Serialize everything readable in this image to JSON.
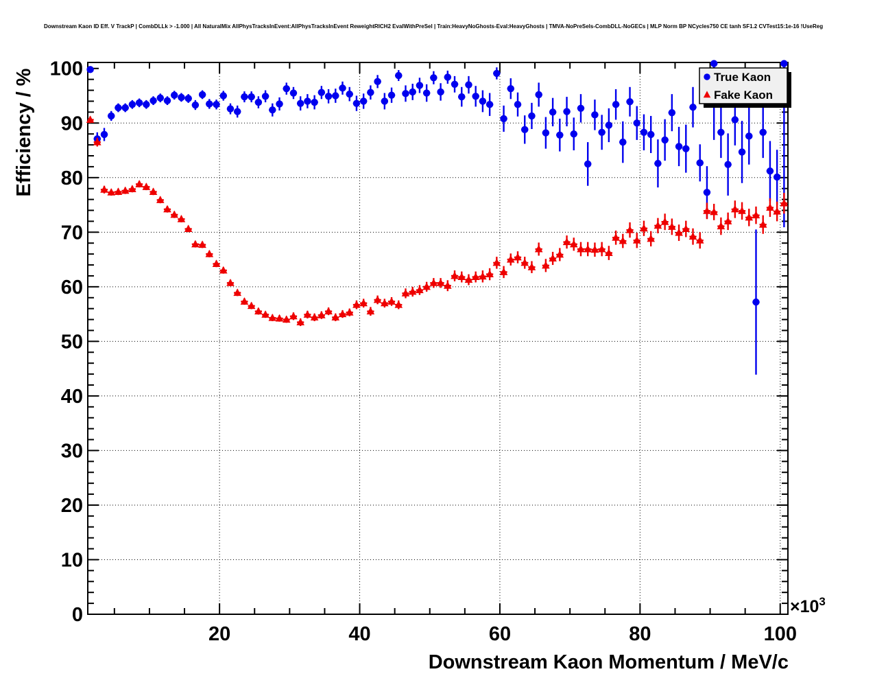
{
  "chart_data": {
    "type": "scatter",
    "title": "Downstream Kaon ID Eff. V TrackP | CombDLLk > -1.000 | All NaturalMix AllPhysTracksInEvent:AllPhysTracksInEvent ReweightRICH2 EvalWithPreSel | Train:HeavyNoGhosts-Eval:HeavyGhosts | TMVA-NoPreSels-CombDLL-NoGECs | MLP Norm BP NCycles750 CE tanh SF1.2 CVTest15:1e-16 !UseReg",
    "xlabel": "Downstream Kaon Momentum / MeV/c",
    "ylabel": "Efficiency / %",
    "x_scale_note": {
      "prefix": "×10",
      "exponent": "3"
    },
    "xlim": [
      1.2,
      101.1
    ],
    "ylim": [
      0,
      101.1
    ],
    "x_ticks": [
      20,
      40,
      60,
      80,
      100
    ],
    "x_tick_labels": [
      "20",
      "40",
      "60",
      "80",
      "100"
    ],
    "x_minor_step": 5,
    "y_ticks": [
      0,
      10,
      20,
      30,
      40,
      50,
      60,
      70,
      80,
      90,
      100
    ],
    "y_tick_labels": [
      "0",
      "10",
      "20",
      "30",
      "40",
      "50",
      "60",
      "70",
      "80",
      "90",
      "100"
    ],
    "y_minor_step": 2,
    "grid": "dotted",
    "x_grid": [
      20,
      40,
      60,
      80,
      100
    ],
    "y_grid": [
      10,
      20,
      30,
      40,
      50,
      60,
      70,
      80,
      90
    ],
    "legend_position": "top-right",
    "x_bin_halfwidth": 0.5,
    "x": [
      1.55,
      2.55,
      3.55,
      4.55,
      5.55,
      6.55,
      7.55,
      8.55,
      9.55,
      10.55,
      11.55,
      12.55,
      13.55,
      14.55,
      15.55,
      16.55,
      17.55,
      18.55,
      19.55,
      20.55,
      21.55,
      22.55,
      23.55,
      24.55,
      25.55,
      26.55,
      27.55,
      28.55,
      29.55,
      30.55,
      31.55,
      32.55,
      33.55,
      34.55,
      35.55,
      36.55,
      37.55,
      38.55,
      39.55,
      40.55,
      41.55,
      42.55,
      43.55,
      44.55,
      45.55,
      46.55,
      47.55,
      48.55,
      49.55,
      50.55,
      51.55,
      52.55,
      53.55,
      54.55,
      55.55,
      56.55,
      57.55,
      58.55,
      59.55,
      60.55,
      61.55,
      62.55,
      63.55,
      64.55,
      65.55,
      66.55,
      67.55,
      68.55,
      69.55,
      70.55,
      71.55,
      72.55,
      73.55,
      74.55,
      75.55,
      76.55,
      77.55,
      78.55,
      79.55,
      80.55,
      81.55,
      82.55,
      83.55,
      84.55,
      85.55,
      86.55,
      87.55,
      88.55,
      89.55,
      90.55,
      91.55,
      92.55,
      93.55,
      94.55,
      95.55,
      96.55,
      97.55,
      98.55,
      99.55,
      100.55
    ],
    "series": [
      {
        "name": "True Kaon",
        "color": "#0000ee",
        "marker": "circle",
        "y": [
          99.8,
          87.1,
          87.9,
          91.3,
          92.8,
          92.8,
          93.4,
          93.7,
          93.4,
          94.1,
          94.6,
          94.1,
          95.1,
          94.7,
          94.5,
          93.3,
          95.2,
          93.5,
          93.4,
          95.0,
          92.6,
          92.1,
          94.8,
          94.8,
          93.8,
          94.9,
          92.4,
          93.5,
          96.3,
          95.5,
          93.6,
          94.0,
          93.8,
          95.6,
          94.9,
          95.0,
          96.4,
          95.3,
          93.6,
          94.0,
          95.6,
          97.6,
          94.0,
          95.1,
          98.7,
          95.4,
          95.7,
          96.9,
          95.5,
          98.3,
          95.7,
          98.4,
          97.1,
          94.8,
          97.0,
          94.9,
          94.0,
          93.4,
          99.1,
          90.8,
          96.3,
          93.4,
          88.8,
          91.3,
          95.2,
          88.2,
          92.0,
          87.8,
          92.1,
          88.0,
          92.7,
          82.5,
          91.5,
          88.3,
          89.6,
          93.4,
          86.5,
          93.9,
          90.0,
          88.3,
          87.9,
          82.6,
          86.9,
          91.9,
          85.7,
          85.3,
          92.9,
          82.7,
          77.3,
          100.9,
          88.3,
          82.4,
          90.6,
          84.7,
          87.6,
          57.2,
          88.3,
          81.2,
          80.1,
          100.9
        ],
        "yerr": [
          0.5,
          1.2,
          1.2,
          0.9,
          0.8,
          0.8,
          0.8,
          0.8,
          0.8,
          0.8,
          0.8,
          0.8,
          0.8,
          0.8,
          0.8,
          0.9,
          0.8,
          0.9,
          0.9,
          0.9,
          1.0,
          1.1,
          1.0,
          1.0,
          1.1,
          1.1,
          1.2,
          1.2,
          1.1,
          1.1,
          1.3,
          1.3,
          1.3,
          1.2,
          1.3,
          1.3,
          1.2,
          1.3,
          1.4,
          1.4,
          1.3,
          1.2,
          1.5,
          1.4,
          1.0,
          1.5,
          1.5,
          1.4,
          1.6,
          1.2,
          1.6,
          1.2,
          1.5,
          1.8,
          1.6,
          1.9,
          2.0,
          2.1,
          1.1,
          2.4,
          1.9,
          2.2,
          2.6,
          2.4,
          2.2,
          2.9,
          2.6,
          3.0,
          2.7,
          3.0,
          2.6,
          4.0,
          2.8,
          3.2,
          3.1,
          2.8,
          3.8,
          2.7,
          3.1,
          3.3,
          3.4,
          4.4,
          3.8,
          3.4,
          3.6,
          4.4,
          3.7,
          3.4,
          4.8,
          14.0,
          4.7,
          5.7,
          4.7,
          5.7,
          5.2,
          13.3,
          4.7,
          5.5,
          5.0,
          30.0
        ]
      },
      {
        "name": "Fake Kaon",
        "color": "#ee0000",
        "marker": "triangle",
        "y": [
          90.6,
          86.5,
          77.8,
          77.3,
          77.4,
          77.6,
          77.9,
          78.8,
          78.3,
          77.4,
          75.9,
          74.2,
          73.2,
          72.4,
          70.6,
          67.8,
          67.7,
          66.0,
          64.2,
          63.0,
          60.7,
          58.9,
          57.3,
          56.5,
          55.5,
          54.9,
          54.3,
          54.2,
          54.0,
          54.6,
          53.5,
          54.9,
          54.4,
          54.8,
          55.5,
          54.4,
          55.0,
          55.3,
          56.7,
          57.0,
          55.5,
          57.6,
          57.0,
          57.3,
          56.7,
          58.8,
          59.1,
          59.4,
          60.0,
          60.7,
          60.7,
          60.2,
          62.0,
          61.8,
          61.3,
          61.8,
          61.9,
          62.3,
          64.4,
          62.7,
          65.0,
          65.4,
          64.4,
          63.6,
          66.9,
          63.9,
          65.2,
          65.9,
          68.2,
          67.8,
          66.9,
          66.9,
          66.8,
          66.9,
          66.2,
          69.0,
          68.4,
          70.4,
          68.5,
          70.7,
          68.8,
          71.2,
          71.9,
          71.0,
          69.9,
          70.6,
          69.2,
          68.5,
          73.9,
          73.7,
          71.1,
          72.0,
          74.2,
          73.9,
          72.7,
          73.1,
          71.4,
          74.5,
          73.8,
          75.3
        ],
        "yerr": [
          0.6,
          0.8,
          0.7,
          0.6,
          0.6,
          0.6,
          0.6,
          0.6,
          0.6,
          0.6,
          0.6,
          0.6,
          0.6,
          0.6,
          0.6,
          0.6,
          0.6,
          0.6,
          0.6,
          0.6,
          0.6,
          0.6,
          0.6,
          0.6,
          0.6,
          0.6,
          0.6,
          0.6,
          0.6,
          0.7,
          0.7,
          0.7,
          0.7,
          0.7,
          0.7,
          0.7,
          0.7,
          0.7,
          0.8,
          0.8,
          0.8,
          0.8,
          0.8,
          0.8,
          0.8,
          0.9,
          0.9,
          0.9,
          0.9,
          0.9,
          0.9,
          1.0,
          1.0,
          1.0,
          1.0,
          1.0,
          1.1,
          1.1,
          1.1,
          1.1,
          1.1,
          1.1,
          1.1,
          1.1,
          1.2,
          1.2,
          1.2,
          1.2,
          1.2,
          1.2,
          1.3,
          1.3,
          1.3,
          1.3,
          1.3,
          1.3,
          1.3,
          1.4,
          1.4,
          1.4,
          1.4,
          1.4,
          1.5,
          1.5,
          1.5,
          1.5,
          1.5,
          1.5,
          1.5,
          1.5,
          1.6,
          1.6,
          1.6,
          1.6,
          1.6,
          1.6,
          1.7,
          1.7,
          1.8,
          1.9
        ]
      }
    ]
  }
}
